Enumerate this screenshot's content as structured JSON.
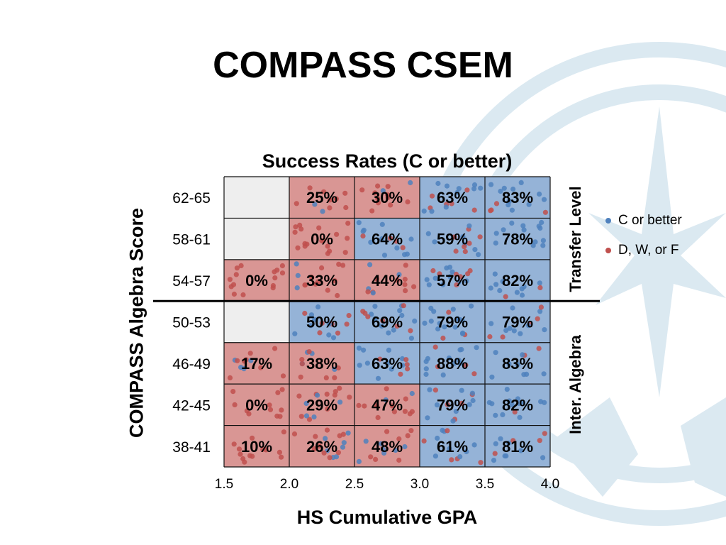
{
  "slide": {
    "title": "COMPASS CSEM"
  },
  "chart_data": {
    "type": "heatmap",
    "title": "Success Rates (C or better)",
    "xlabel": "HS Cumulative GPA",
    "ylabel": "COMPASS Algebra Score",
    "x_ticks": [
      "1.5",
      "2.0",
      "2.5",
      "3.0",
      "3.5",
      "4.0"
    ],
    "xlim": [
      1.5,
      4.0
    ],
    "y_categories_top_to_bottom": [
      "62-65",
      "58-61",
      "54-57",
      "50-53",
      "46-49",
      "42-45",
      "38-41"
    ],
    "x_bins": [
      "1.5-2.0",
      "2.0-2.5",
      "2.5-3.0",
      "3.0-3.5",
      "3.5-4.0"
    ],
    "rates": [
      [
        null,
        "25%",
        "30%",
        "63%",
        "83%"
      ],
      [
        null,
        "0%",
        "64%",
        "59%",
        "78%"
      ],
      [
        "0%",
        "33%",
        "44%",
        "57%",
        "82%"
      ],
      [
        null,
        "50%",
        "69%",
        "79%",
        "79%"
      ],
      [
        "17%",
        "38%",
        "63%",
        "88%",
        "83%"
      ],
      [
        "0%",
        "29%",
        "47%",
        "79%",
        "82%"
      ],
      [
        "10%",
        "26%",
        "48%",
        "61%",
        "81%"
      ]
    ],
    "divider_between_rows": [
      "54-57",
      "50-53"
    ],
    "region_labels": [
      "Transfer Level",
      "Inter. Algebra"
    ],
    "legend": [
      {
        "label": "C or better",
        "color": "#4f81bd"
      },
      {
        "label": "D, W, or F",
        "color": "#c0504d"
      }
    ],
    "legend_position": "right",
    "colors": {
      "success_fill": "#95b3d7",
      "fail_fill": "#d99694",
      "empty_fill": "#eeeeee",
      "success_dot": "#4f81bd",
      "fail_dot": "#c0504d",
      "background_art": "#dbe9f1"
    }
  }
}
